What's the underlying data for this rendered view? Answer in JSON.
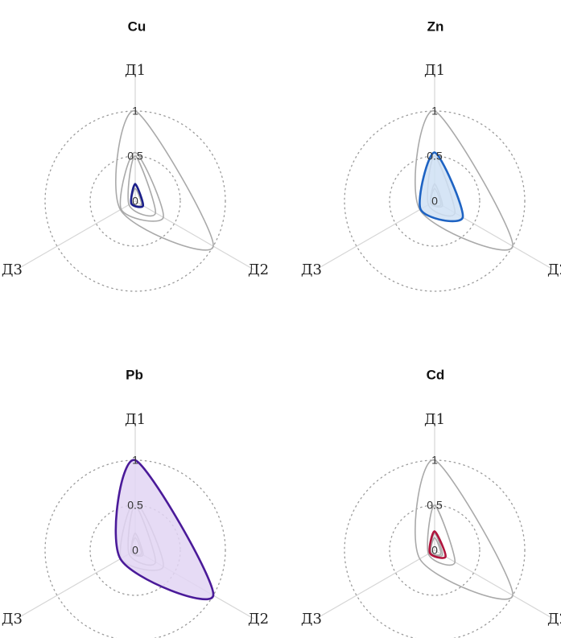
{
  "chart_data": [
    {
      "type": "radar",
      "title": "Cu",
      "axes": [
        "Д1",
        "Д2",
        "Д3"
      ],
      "rings": [
        0,
        0.5,
        1
      ],
      "ring_labels": [
        "0",
        "0.5",
        "1"
      ],
      "grid": "dotted circles",
      "highlight": "Cu",
      "series": [
        {
          "values": [
            0.19,
            0.1,
            0.05
          ],
          "color": "#1b1f8a",
          "fill": "none"
        },
        {
          "values": [
            0.54,
            0.36,
            0.18
          ],
          "color": "#a9a9a9",
          "fill": "none"
        },
        {
          "values": [
            1.0,
            1.0,
            0.19
          ],
          "color": "#a9a9a9",
          "fill": "none"
        },
        {
          "values": [
            0.5,
            0.26,
            0.08
          ],
          "color": "#a9a9a9",
          "fill": "none"
        },
        {
          "values": [
            0.14,
            0.08,
            0.05
          ],
          "color": "#a9a9a9",
          "fill": "none"
        }
      ]
    },
    {
      "type": "radar",
      "title": "Zn",
      "axes": [
        "Д1",
        "Д2",
        "Д3"
      ],
      "rings": [
        0,
        0.5,
        1
      ],
      "ring_labels": [
        "0",
        "0.5",
        "1"
      ],
      "grid": "dotted circles",
      "highlight": "Zn",
      "series": [
        {
          "values": [
            0.54,
            0.36,
            0.18
          ],
          "color": "#1e63c3",
          "fill": "#cfe0f5"
        },
        {
          "values": [
            0.19,
            0.1,
            0.05
          ],
          "color": "#a9a9a9",
          "fill": "none"
        },
        {
          "values": [
            1.0,
            1.0,
            0.19
          ],
          "color": "#a9a9a9",
          "fill": "none"
        },
        {
          "values": [
            0.5,
            0.26,
            0.08
          ],
          "color": "#a9a9a9",
          "fill": "none"
        },
        {
          "values": [
            0.14,
            0.08,
            0.05
          ],
          "color": "#a9a9a9",
          "fill": "none"
        }
      ]
    },
    {
      "type": "radar",
      "title": "Pb",
      "axes": [
        "Д1",
        "Д2",
        "Д3"
      ],
      "rings": [
        0,
        0.5,
        1
      ],
      "ring_labels": [
        "0",
        "0.5",
        "1"
      ],
      "grid": "dotted circles",
      "highlight": "Pb",
      "series": [
        {
          "values": [
            1.0,
            1.0,
            0.19
          ],
          "color": "#4a1a99",
          "fill": "#e2d5f3"
        },
        {
          "values": [
            0.19,
            0.1,
            0.05
          ],
          "color": "#a9a9a9",
          "fill": "none"
        },
        {
          "values": [
            0.54,
            0.36,
            0.18
          ],
          "color": "#a9a9a9",
          "fill": "none"
        },
        {
          "values": [
            0.5,
            0.26,
            0.08
          ],
          "color": "#a9a9a9",
          "fill": "none"
        },
        {
          "values": [
            0.14,
            0.08,
            0.05
          ],
          "color": "#a9a9a9",
          "fill": "none"
        }
      ]
    },
    {
      "type": "radar",
      "title": "Cd",
      "axes": [
        "Д1",
        "Д2",
        "Д3"
      ],
      "rings": [
        0,
        0.5,
        1
      ],
      "ring_labels": [
        "0",
        "0.5",
        "1"
      ],
      "grid": "dotted circles",
      "highlight": "Cd",
      "series": [
        {
          "values": [
            0.21,
            0.14,
            0.06
          ],
          "color": "#b0153d",
          "fill": "none"
        },
        {
          "values": [
            0.19,
            0.1,
            0.05
          ],
          "color": "#a9a9a9",
          "fill": "none"
        },
        {
          "values": [
            1.0,
            1.0,
            0.19
          ],
          "color": "#a9a9a9",
          "fill": "none"
        },
        {
          "values": [
            0.5,
            0.26,
            0.08
          ],
          "color": "#a9a9a9",
          "fill": "none"
        },
        {
          "values": [
            0.14,
            0.08,
            0.05
          ],
          "color": "#a9a9a9",
          "fill": "none"
        }
      ]
    }
  ]
}
